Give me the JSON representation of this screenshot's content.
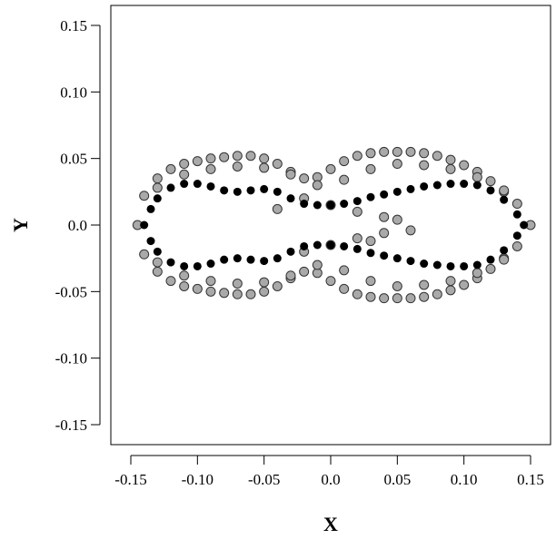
{
  "chart_data": {
    "type": "scatter",
    "title": "",
    "xlabel": "X",
    "ylabel": "Y",
    "xlim": [
      -0.165,
      0.165
    ],
    "ylim": [
      -0.165,
      0.165
    ],
    "xticks": [
      "-0.15",
      "-0.10",
      "-0.05",
      "0.0",
      "0.05",
      "0.10",
      "0.15"
    ],
    "yticks": [
      "0.15",
      "0.10",
      "0.05",
      "0.0",
      "-0.05",
      "-0.10",
      "-0.15"
    ],
    "grid": false,
    "series": [
      {
        "style": "gray-open-circles",
        "color": "#a9a9a9",
        "edge_color": "#333333",
        "x": [
          -0.145,
          -0.14,
          -0.13,
          -0.12,
          -0.11,
          -0.1,
          -0.09,
          -0.08,
          -0.07,
          -0.06,
          -0.05,
          -0.04,
          -0.03,
          -0.02,
          -0.01,
          0.0,
          0.01,
          0.02,
          0.03,
          0.04,
          0.05,
          0.06,
          0.07,
          0.08,
          0.09,
          0.1,
          0.11,
          0.12,
          0.13,
          0.14,
          0.15,
          0.14,
          0.13,
          0.12,
          0.11,
          0.1,
          0.09,
          0.08,
          0.07,
          0.06,
          0.05,
          0.04,
          0.03,
          0.02,
          0.01,
          0.0,
          -0.01,
          -0.02,
          -0.03,
          -0.04,
          -0.05,
          -0.06,
          -0.07,
          -0.08,
          -0.09,
          -0.1,
          -0.11,
          -0.12,
          -0.13,
          -0.14,
          -0.13,
          -0.11,
          -0.09,
          -0.07,
          -0.05,
          -0.03,
          -0.01,
          0.01,
          0.03,
          0.05,
          0.07,
          0.09,
          0.11,
          0.13,
          0.13,
          0.11,
          0.09,
          0.07,
          0.05,
          0.03,
          0.01,
          -0.01,
          -0.03,
          -0.05,
          -0.07,
          -0.09,
          -0.11,
          -0.13,
          -0.02,
          0.0,
          0.02,
          0.04,
          -0.02,
          0.0,
          0.02,
          0.04,
          0.06,
          -0.04,
          0.03,
          0.05
        ],
        "y": [
          0.0,
          0.022,
          0.035,
          0.042,
          0.046,
          0.048,
          0.05,
          0.051,
          0.052,
          0.052,
          0.05,
          0.046,
          0.04,
          0.035,
          0.036,
          0.042,
          0.048,
          0.052,
          0.054,
          0.055,
          0.055,
          0.055,
          0.054,
          0.052,
          0.049,
          0.045,
          0.04,
          0.033,
          0.025,
          0.016,
          0.0,
          -0.016,
          -0.025,
          -0.033,
          -0.04,
          -0.045,
          -0.049,
          -0.052,
          -0.054,
          -0.055,
          -0.055,
          -0.055,
          -0.054,
          -0.052,
          -0.048,
          -0.042,
          -0.036,
          -0.035,
          -0.04,
          -0.046,
          -0.05,
          -0.052,
          -0.052,
          -0.051,
          -0.05,
          -0.048,
          -0.046,
          -0.042,
          -0.035,
          -0.022,
          0.028,
          0.038,
          0.042,
          0.044,
          0.043,
          0.038,
          0.03,
          0.034,
          0.042,
          0.046,
          0.045,
          0.042,
          0.036,
          0.026,
          -0.026,
          -0.036,
          -0.042,
          -0.045,
          -0.046,
          -0.042,
          -0.034,
          -0.03,
          -0.038,
          -0.043,
          -0.044,
          -0.042,
          -0.038,
          -0.028,
          0.02,
          0.015,
          0.01,
          0.006,
          -0.02,
          -0.015,
          -0.01,
          -0.006,
          -0.004,
          0.012,
          -0.012,
          0.004
        ]
      },
      {
        "style": "black-filled-circles",
        "color": "#000000",
        "x": [
          -0.14,
          -0.135,
          -0.13,
          -0.12,
          -0.11,
          -0.1,
          -0.09,
          -0.08,
          -0.07,
          -0.06,
          -0.05,
          -0.04,
          -0.03,
          -0.02,
          -0.01,
          0.0,
          0.01,
          0.02,
          0.03,
          0.04,
          0.05,
          0.06,
          0.07,
          0.08,
          0.09,
          0.1,
          0.11,
          0.12,
          0.13,
          0.14,
          0.145,
          0.14,
          0.13,
          0.12,
          0.11,
          0.1,
          0.09,
          0.08,
          0.07,
          0.06,
          0.05,
          0.04,
          0.03,
          0.02,
          0.01,
          0.0,
          -0.01,
          -0.02,
          -0.03,
          -0.04,
          -0.05,
          -0.06,
          -0.07,
          -0.08,
          -0.09,
          -0.1,
          -0.11,
          -0.12,
          -0.13,
          -0.135
        ],
        "y": [
          0.0,
          0.012,
          0.02,
          0.028,
          0.031,
          0.031,
          0.029,
          0.026,
          0.025,
          0.026,
          0.027,
          0.025,
          0.02,
          0.016,
          0.015,
          0.015,
          0.016,
          0.018,
          0.021,
          0.023,
          0.025,
          0.027,
          0.029,
          0.03,
          0.031,
          0.031,
          0.03,
          0.026,
          0.019,
          0.008,
          0.0,
          -0.008,
          -0.019,
          -0.026,
          -0.03,
          -0.031,
          -0.031,
          -0.03,
          -0.029,
          -0.027,
          -0.025,
          -0.023,
          -0.021,
          -0.018,
          -0.016,
          -0.015,
          -0.015,
          -0.016,
          -0.02,
          -0.025,
          -0.027,
          -0.026,
          -0.025,
          -0.026,
          -0.029,
          -0.031,
          -0.031,
          -0.028,
          -0.02,
          -0.012
        ]
      }
    ]
  }
}
